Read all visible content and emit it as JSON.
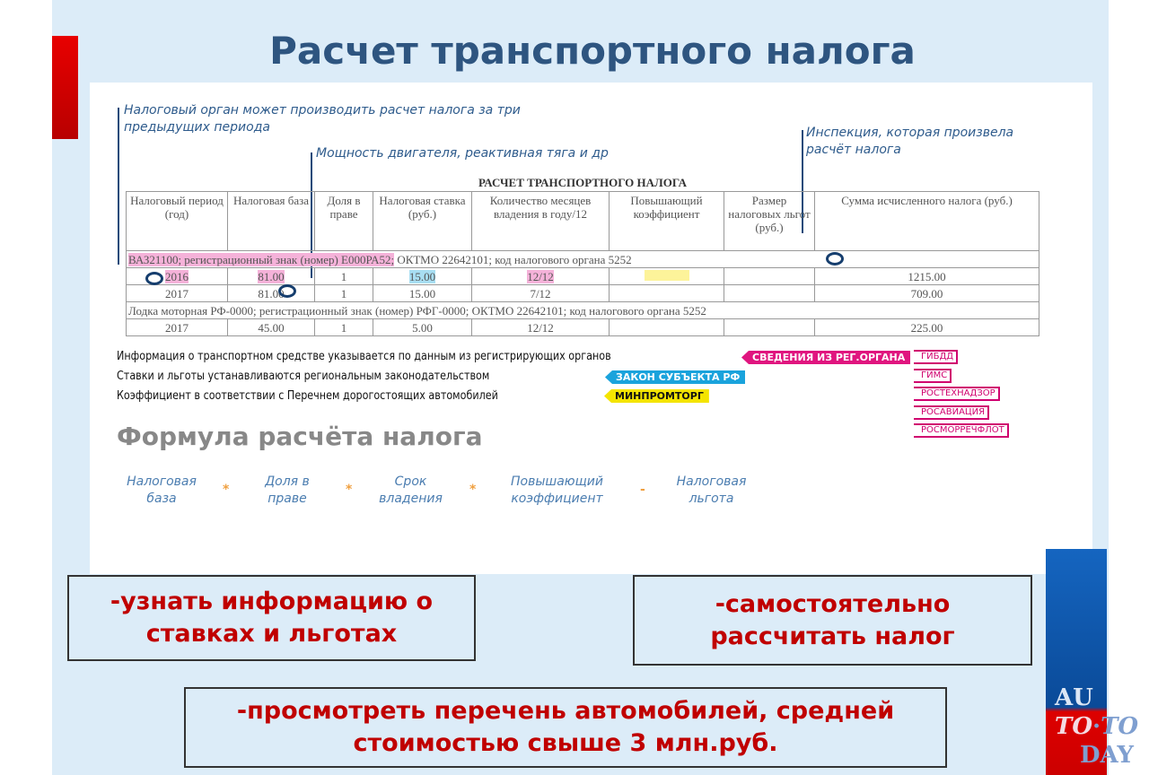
{
  "title": "Расчет транспортного налога",
  "notes": {
    "period": "Налоговый орган может производить расчет налога за три предыдущих периода",
    "power": "Мощность двигателя, реактивная тяга и др",
    "inspection": "Инспекция, которая произвела расчёт налога"
  },
  "table": {
    "title": "РАСЧЕТ ТРАНСПОРТНОГО НАЛОГА",
    "headers": [
      "Налоговый период (год)",
      "Налоговая база",
      "Доля в праве",
      "Налоговая ставка (руб.)",
      "Количество месяцев владения в году/12",
      "Повышающий коэффициент",
      "Размер налоговых льгот (руб.)",
      "Сумма исчисленного налога (руб.)"
    ],
    "vehicle1": {
      "reg": "ВАЗ21100; регистрационный знак (номер) Е000РА52;",
      "rest": " ОКТМО 22642101; код налогового органа 5252"
    },
    "rows1": [
      [
        "2016",
        "81.00",
        "1",
        "15.00",
        "12/12",
        "",
        "",
        "1215.00"
      ],
      [
        "2017",
        "81.00",
        "1",
        "15.00",
        "7/12",
        "",
        "",
        "709.00"
      ]
    ],
    "vehicle2": "Лодка моторная РФ-0000; регистрационный знак (номер) РФГ-0000; ОКТМО 22642101; код налогового органа 5252",
    "rows2": [
      [
        "2017",
        "45.00",
        "1",
        "5.00",
        "12/12",
        "",
        "",
        "225.00"
      ]
    ]
  },
  "info": [
    {
      "text": "Информация о транспортном средстве указывается по данным из регистрирующих органов",
      "tag": "СВЕДЕНИЯ ИЗ РЕГ.ОРГАНА",
      "color": "#e0157f"
    },
    {
      "text": "Ставки и льготы устанавливаются региональным законодательством",
      "tag": "ЗАКОН СУБЪЕКТА РФ",
      "color": "#1aa3dc"
    },
    {
      "text": "Коэффициент в соответствии с Перечнем дорогостоящих автомобилей",
      "tag": "МИНПРОМТОРГ",
      "color": "#f4e400"
    }
  ],
  "organs": [
    "ГИБДД",
    "ГИМС",
    "РОСТЕХНАДЗОР",
    "РОСАВИАЦИЯ",
    "РОСМОРРЕЧФЛОТ"
  ],
  "formula": {
    "title": "Формула расчёта налога",
    "terms": [
      "Налоговая база",
      "Доля в праве",
      "Срок владения",
      "Повышающий коэффициент",
      "Налоговая льгота"
    ],
    "ops": [
      "*",
      "*",
      "*",
      "-"
    ]
  },
  "boxes": [
    "-узнать информацию о ставках и льготах",
    "-самостоятельно рассчитать налог",
    "-просмотреть перечень автомобилей, средней стоимостью свыше 3 млн.руб."
  ],
  "logo": "AUTO TO DAY"
}
